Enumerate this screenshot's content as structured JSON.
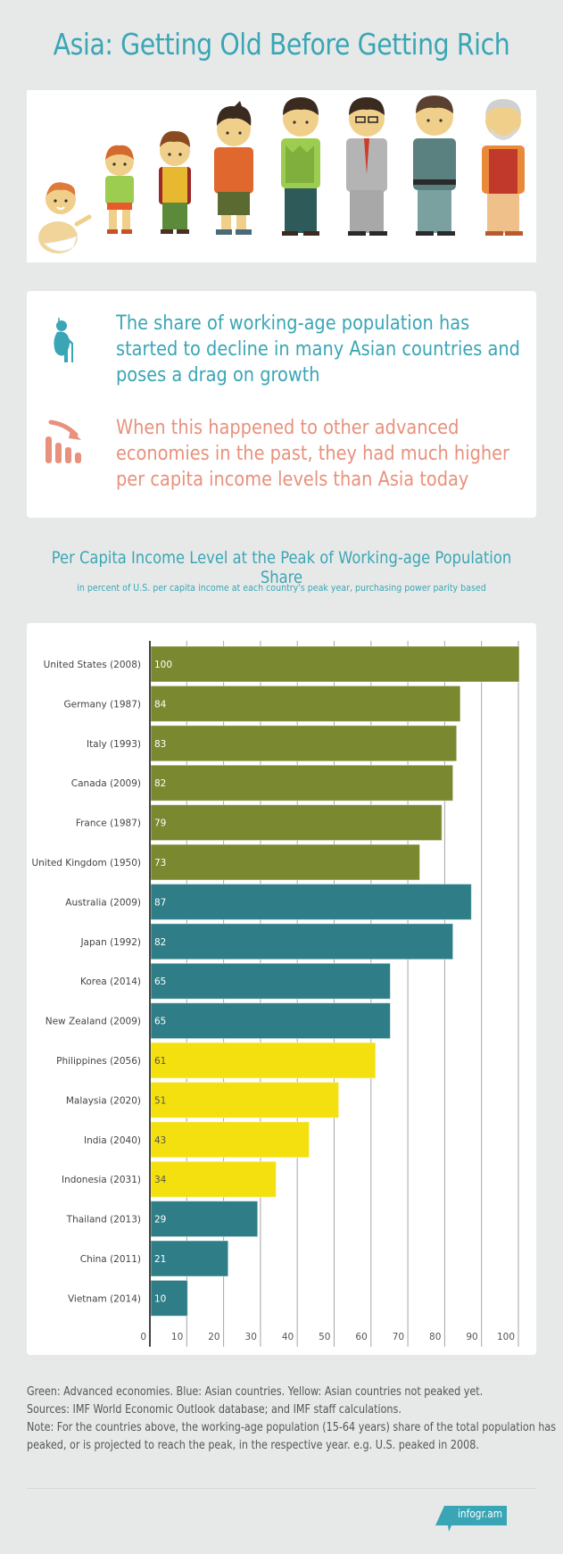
{
  "header": {
    "title": "Asia: Getting Old Before Getting Rich"
  },
  "illustration": {
    "description": "Eight cartoon figures showing male life stages from baby to elderly man",
    "figures": [
      "baby",
      "toddler",
      "schoolboy",
      "teenager",
      "young-man",
      "businessman",
      "middle-aged-man",
      "elderly-man"
    ]
  },
  "statements": [
    {
      "icon": "elderly-person-icon",
      "text": "The share of working-age population has started to decline in many Asian countries and poses a drag on growth",
      "color": "#3aa6b5"
    },
    {
      "icon": "declining-bar-chart-icon",
      "text": "When this happened to other advanced economies in the past, they had much higher per capita income levels than Asia today",
      "color": "#e8917c"
    }
  ],
  "chart_data": {
    "type": "bar",
    "orientation": "horizontal",
    "title": "Per Capita Income Level at the Peak of Working-age Population Share",
    "subtitle": "in percent of U.S. per capita income at each country's peak year, purchasing power parity based",
    "xlabel": "",
    "ylabel": "",
    "xlim": [
      0,
      100
    ],
    "xticks": [
      0,
      10,
      20,
      30,
      40,
      50,
      60,
      70,
      80,
      90,
      100
    ],
    "grid": true,
    "categories": [
      "United States (2008)",
      "Germany (1987)",
      "Italy (1993)",
      "Canada (2009)",
      "France (1987)",
      "United Kingdom (1950)",
      "Australia (2009)",
      "Japan (1992)",
      "Korea (2014)",
      "New Zealand (2009)",
      "Philippines (2056)",
      "Malaysia (2020)",
      "India (2040)",
      "Indonesia (2031)",
      "Thailand (2013)",
      "China (2011)",
      "Vietnam (2014)"
    ],
    "values": [
      100,
      84,
      83,
      82,
      79,
      73,
      87,
      82,
      65,
      65,
      61,
      51,
      43,
      34,
      29,
      21,
      10
    ],
    "groups": [
      "advanced",
      "advanced",
      "advanced",
      "advanced",
      "advanced",
      "advanced",
      "asian",
      "asian",
      "asian",
      "asian",
      "asian-not-peaked",
      "asian-not-peaked",
      "asian-not-peaked",
      "asian-not-peaked",
      "asian",
      "asian",
      "asian"
    ],
    "group_colors": {
      "advanced": "#7a8830",
      "asian": "#2e7d87",
      "asian-not-peaked": "#f4e00f"
    },
    "label_colors": {
      "advanced": "#ffffff",
      "asian": "#ffffff",
      "asian-not-peaked": "#555555"
    },
    "data_labels": true
  },
  "notes": [
    "Green: Advanced economies. Blue: Asian countries. Yellow: Asian countries not peaked yet.",
    "Sources: IMF World Economic Outlook database; and IMF staff calculations.",
    "Note: For the countries above, the working-age population (15-64 years) share of the total population has",
    "peaked, or is projected to reach the peak, in the respective year. e.g. U.S. peaked in 2008."
  ],
  "footer": {
    "brand": "infogr.am",
    "brand_color": "#3aa6b5"
  }
}
